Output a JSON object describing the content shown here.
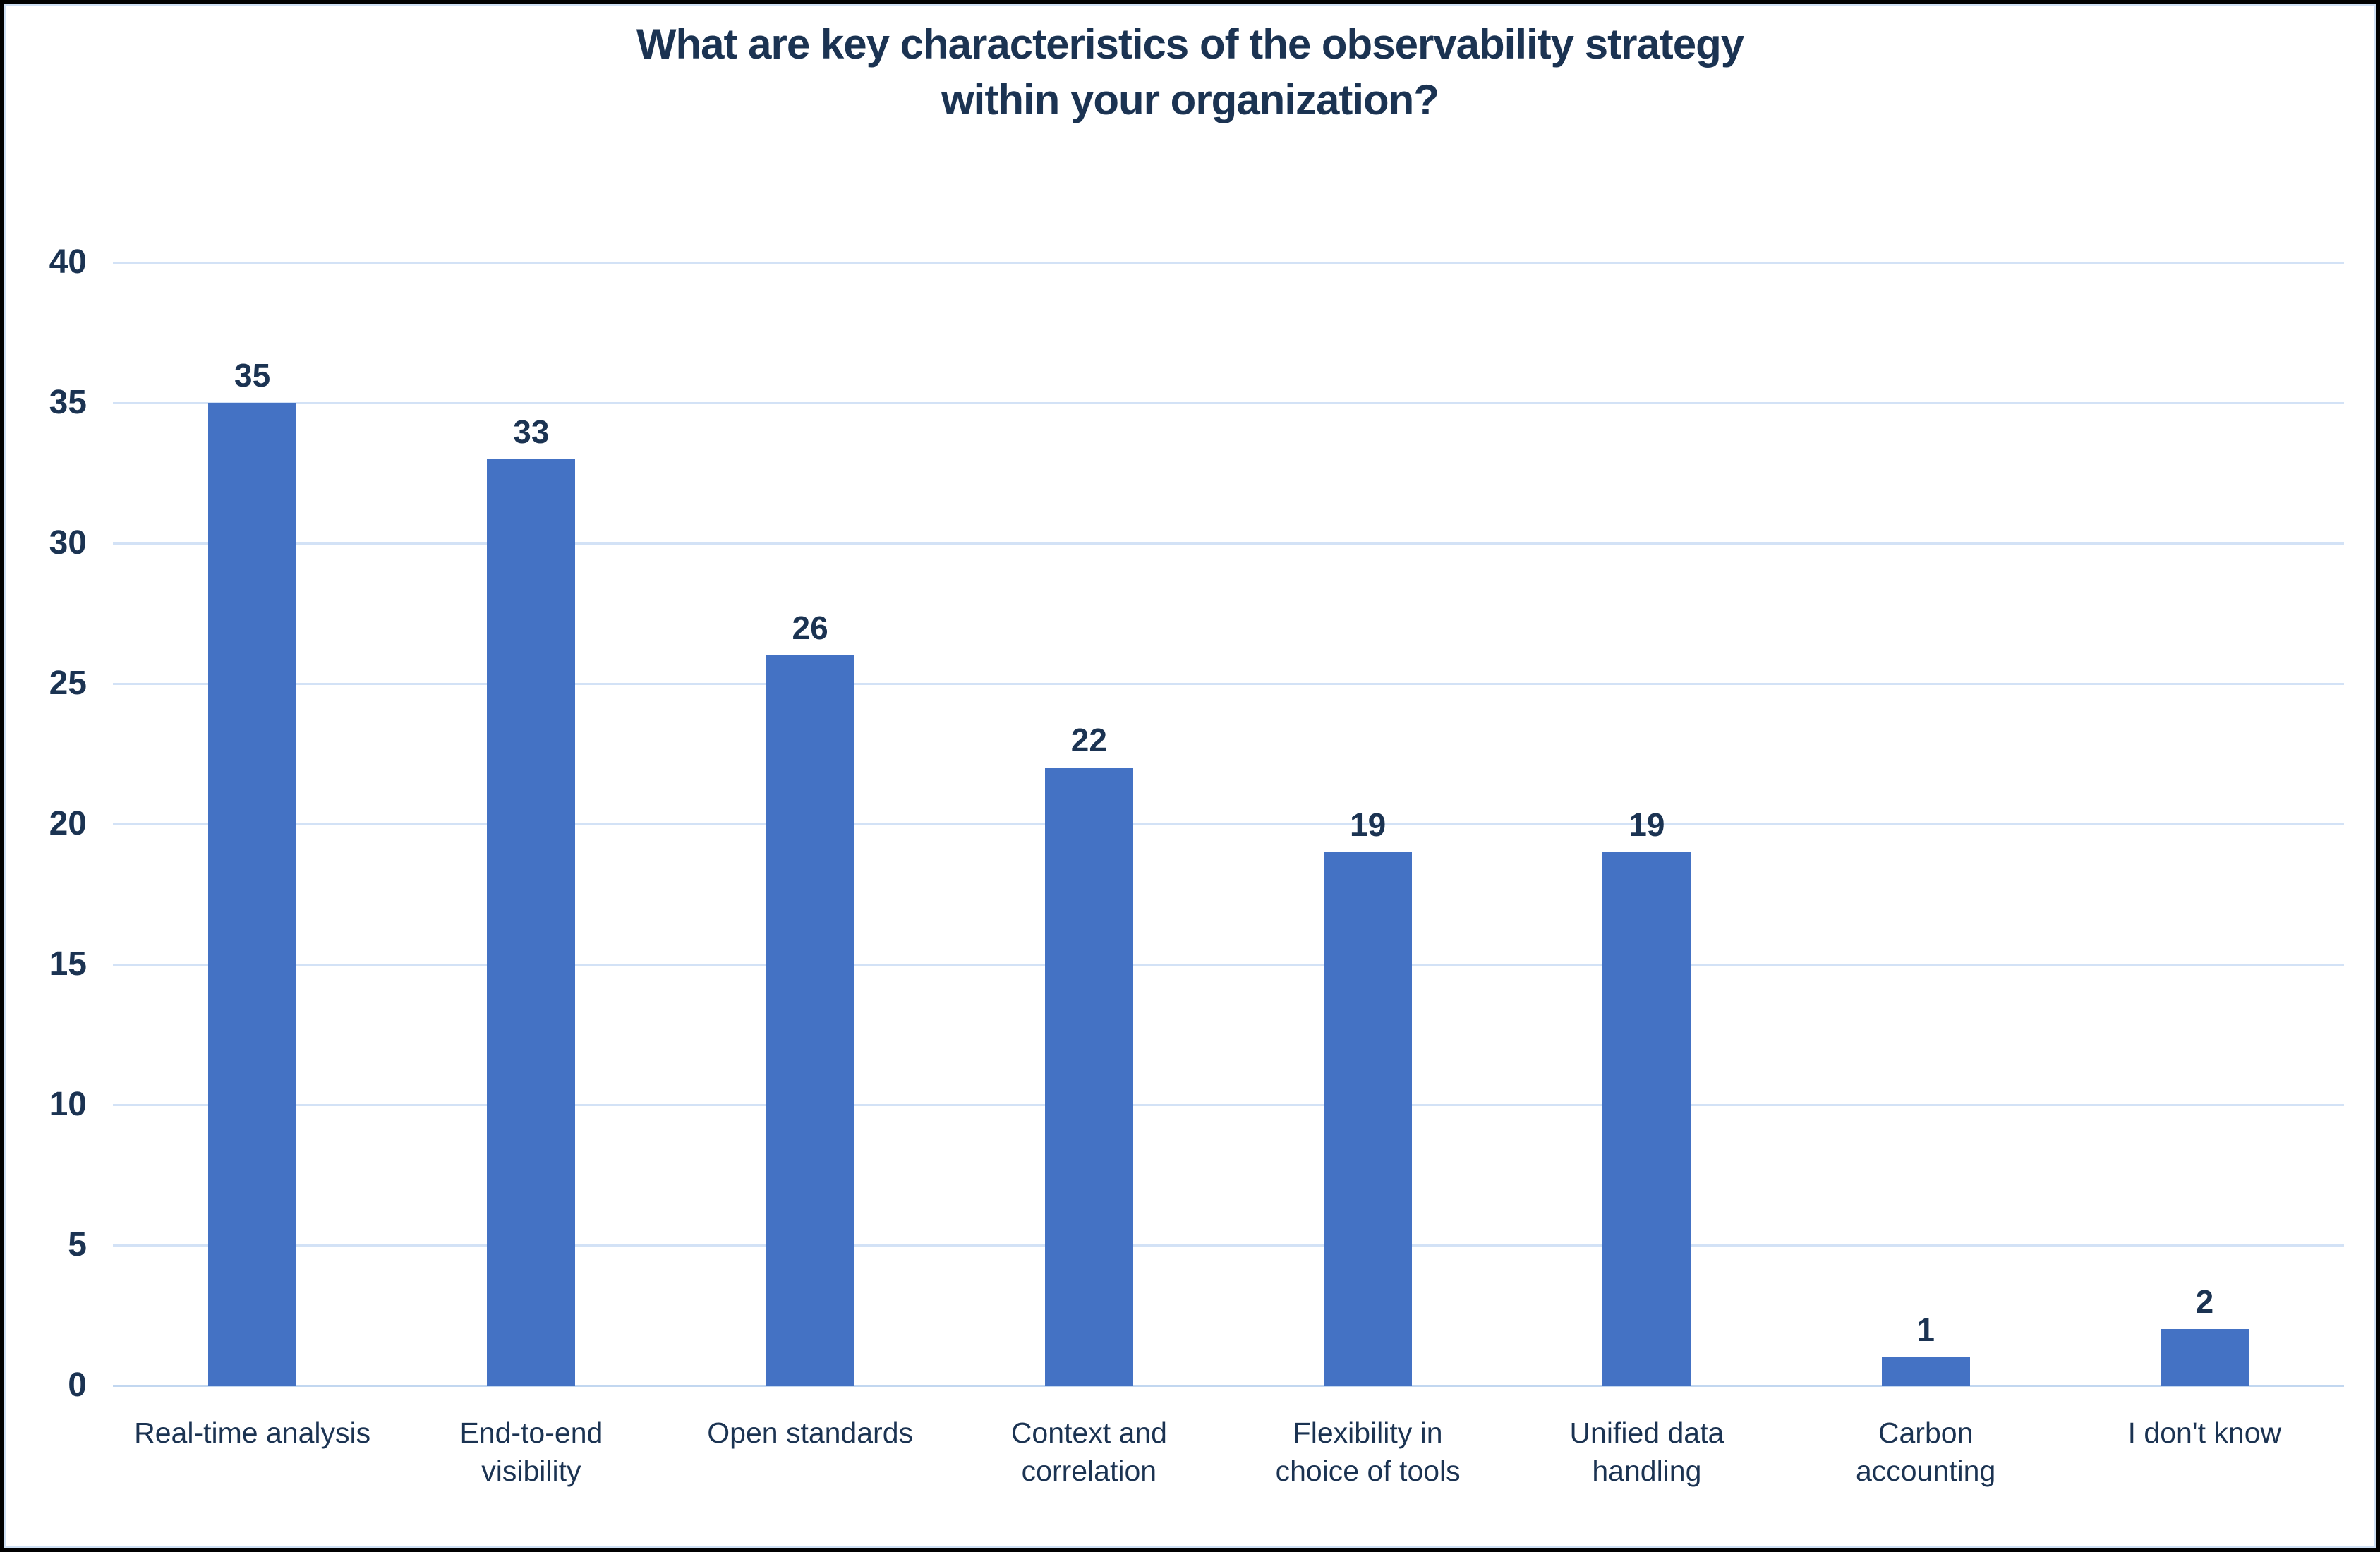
{
  "chart_data": {
    "type": "bar",
    "title": "What are key characteristics of the observability strategy within your organization?",
    "title_lines": [
      "What are key characteristics of the observability strategy",
      "within your organization?"
    ],
    "categories": [
      "Real-time analysis",
      "End-to-end visibility",
      "Open standards",
      "Context and correlation",
      "Flexibility in choice of tools",
      "Unified data handling",
      "Carbon accounting",
      "I don't know"
    ],
    "values": [
      35,
      33,
      26,
      22,
      19,
      19,
      1,
      2
    ],
    "data_labels": [
      "35",
      "33",
      "26",
      "22",
      "19",
      "19",
      "1",
      "2"
    ],
    "xlabel": "",
    "ylabel": "",
    "ylim": [
      0,
      40
    ],
    "yticks": [
      "0",
      "5",
      "10",
      "15",
      "20",
      "25",
      "30",
      "35",
      "40"
    ],
    "grid": true,
    "legend_position": "none"
  },
  "colors": {
    "bar": "#4472C4",
    "text_navy": "#1B3352",
    "gridline": "#D3E2F6",
    "baseline": "#C2D7F0",
    "inner_frame": "#CFE0F4",
    "outer_border": "#010101",
    "background": "#FFFFFF"
  }
}
